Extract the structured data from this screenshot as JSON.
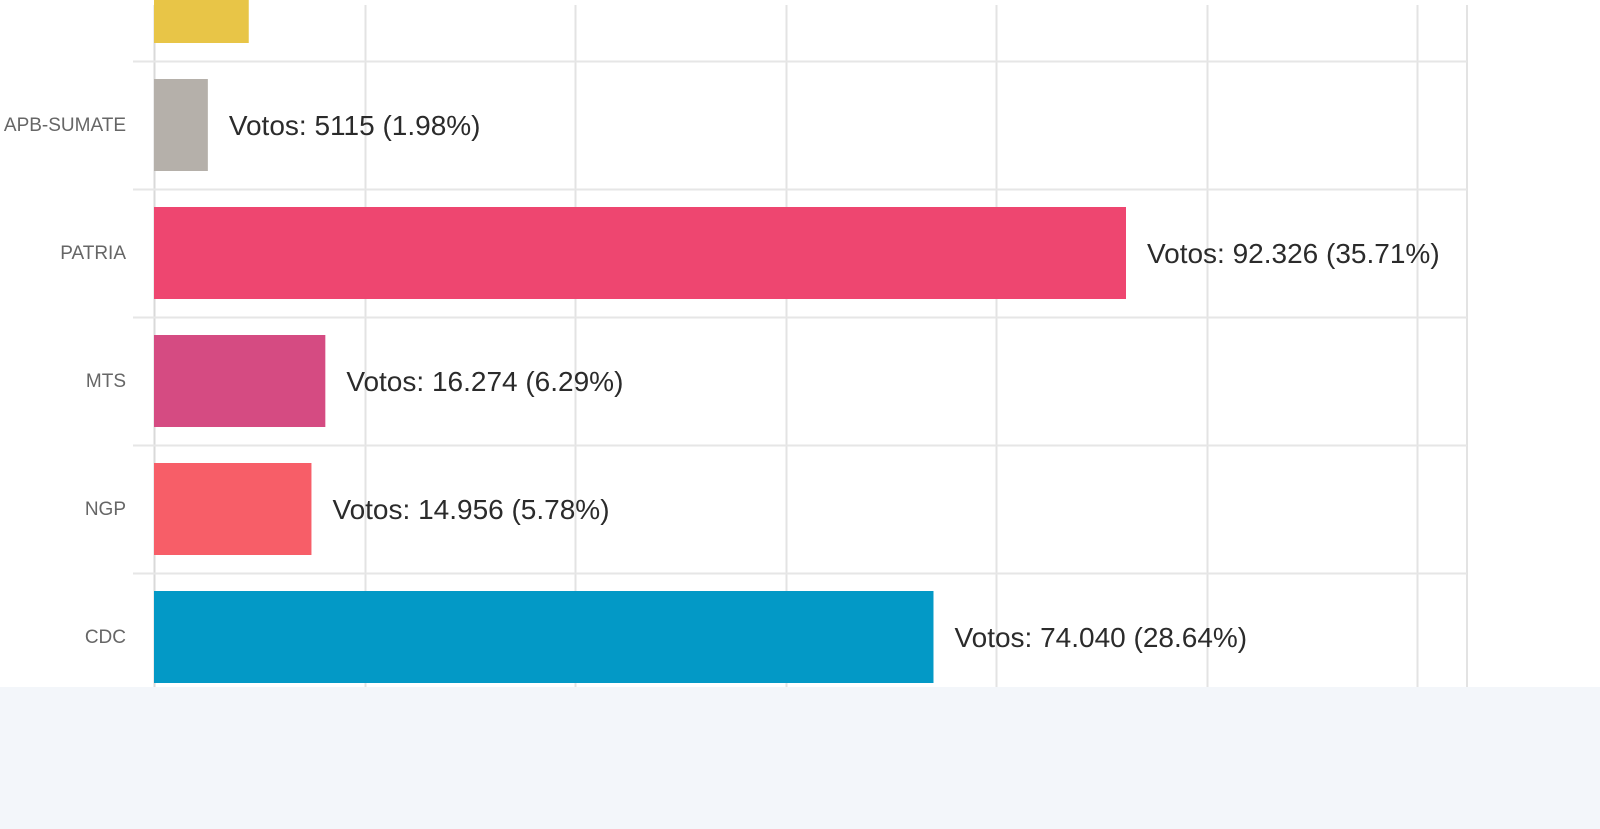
{
  "chart_data": {
    "type": "bar",
    "orientation": "horizontal",
    "categories": [
      "",
      "APB-SUMATE",
      "PATRIA",
      "MTS",
      "NGP",
      "CDC"
    ],
    "values": [
      null,
      5115,
      92326,
      16274,
      14956,
      74040
    ],
    "value_labels": [
      "",
      "Votos: 5115 (1.98%)",
      "Votos: 92.326 (35.71%)",
      "Votos: 16.274 (6.29%)",
      "Votos: 14.956 (5.78%)",
      "Votos: 74.040 (28.64%)"
    ],
    "colors": [
      "#e8c547",
      "#b5b0aa",
      "#ee4670",
      "#d54b82",
      "#f75e68",
      "#0399c6"
    ],
    "xlim": [
      0,
      124000
    ],
    "grid": true,
    "title": "",
    "xlabel": "",
    "ylabel": ""
  }
}
